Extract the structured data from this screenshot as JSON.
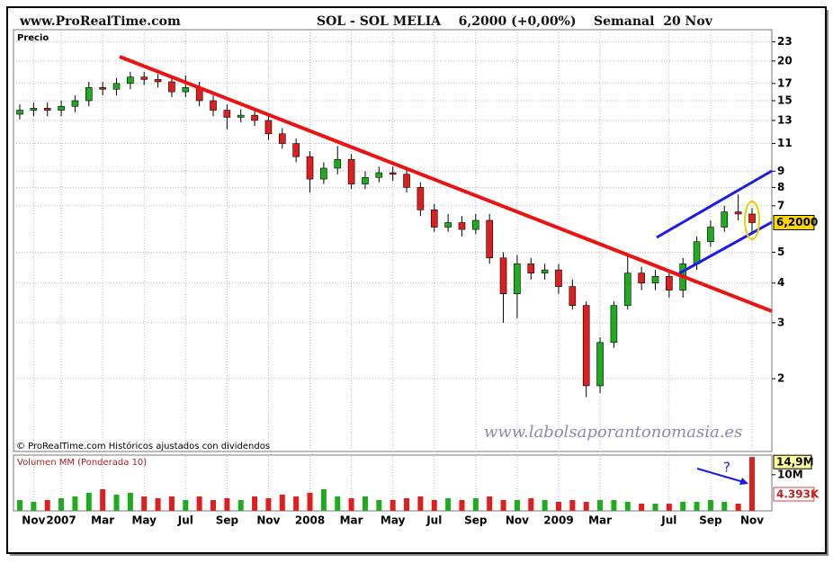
{
  "chart_data": [
    {
      "type": "candlestick",
      "source": "www.ProRealTime.com",
      "title": "SOL - SOL MELIA    6,2000 (+0,00%)    Semanal  20 Nov",
      "ylabel": "Precio",
      "footnote": "© ProRealTime.com  Históricos ajustados con dividendos",
      "watermark": "www.labolsaporantonomasia.es",
      "categories": [
        null,
        "Nov",
        null,
        "2007",
        null,
        null,
        "Mar",
        null,
        null,
        "May",
        null,
        null,
        "Jul",
        null,
        null,
        "Sep",
        null,
        null,
        "Nov",
        null,
        null,
        "2008",
        null,
        null,
        "Mar",
        null,
        null,
        "May",
        null,
        null,
        "Jul",
        null,
        null,
        "Sep",
        null,
        null,
        "Nov",
        null,
        null,
        "2009",
        null,
        null,
        "Mar",
        null,
        null,
        null,
        null,
        "Jul",
        null,
        null,
        "Sep",
        null,
        null,
        "Nov"
      ],
      "open": [
        13.6,
        14.0,
        14.2,
        14.0,
        14.4,
        15.0,
        16.5,
        16.3,
        17.0,
        17.8,
        17.5,
        17.2,
        16.0,
        16.5,
        15.0,
        14.0,
        13.3,
        13.5,
        13.0,
        11.8,
        11.0,
        10.0,
        8.5,
        9.2,
        9.8,
        8.2,
        8.6,
        8.9,
        8.8,
        8.0,
        6.8,
        6.0,
        6.2,
        5.9,
        6.3,
        4.8,
        3.7,
        4.6,
        4.3,
        4.4,
        3.9,
        3.4,
        1.9,
        2.6,
        3.4,
        4.3,
        4.0,
        4.2,
        3.8,
        4.6,
        5.4,
        6.0,
        6.7,
        6.6
      ],
      "high": [
        14.6,
        14.8,
        14.8,
        15.0,
        15.6,
        17.2,
        17.2,
        17.7,
        18.5,
        18.5,
        18.2,
        17.9,
        18.0,
        17.2,
        15.6,
        14.6,
        14.1,
        14.1,
        13.5,
        12.3,
        11.4,
        10.4,
        9.6,
        10.8,
        10.2,
        9.0,
        9.3,
        9.3,
        9.2,
        8.3,
        7.1,
        6.6,
        6.5,
        6.6,
        6.6,
        5.0,
        4.9,
        4.8,
        4.6,
        4.6,
        4.1,
        3.5,
        2.7,
        3.5,
        4.9,
        4.5,
        4.4,
        4.4,
        4.8,
        5.6,
        6.3,
        7.0,
        7.6,
        6.9
      ],
      "low": [
        13.1,
        13.4,
        13.4,
        13.4,
        13.8,
        14.4,
        15.6,
        15.6,
        16.3,
        16.8,
        16.5,
        15.4,
        15.4,
        14.4,
        13.4,
        12.2,
        12.8,
        12.5,
        11.3,
        10.6,
        9.6,
        7.7,
        8.2,
        8.8,
        7.9,
        7.9,
        8.3,
        8.4,
        7.7,
        6.5,
        5.8,
        5.8,
        5.6,
        5.7,
        4.6,
        3.0,
        3.1,
        4.1,
        4.1,
        3.7,
        3.3,
        1.75,
        1.8,
        2.5,
        3.3,
        3.8,
        3.8,
        3.6,
        3.6,
        4.4,
        5.2,
        5.8,
        6.3,
        5.8
      ],
      "close": [
        14.0,
        14.2,
        14.0,
        14.4,
        15.0,
        16.5,
        16.3,
        17.0,
        17.8,
        17.5,
        17.2,
        16.0,
        16.5,
        15.0,
        14.0,
        13.3,
        13.5,
        13.0,
        11.8,
        11.0,
        10.0,
        8.5,
        9.2,
        9.8,
        8.2,
        8.6,
        8.9,
        8.8,
        8.0,
        6.8,
        6.0,
        6.2,
        5.9,
        6.3,
        4.8,
        3.7,
        4.6,
        4.3,
        4.4,
        3.9,
        3.4,
        1.9,
        2.6,
        3.4,
        4.3,
        4.0,
        4.2,
        3.8,
        4.6,
        5.4,
        6.0,
        6.7,
        6.6,
        6.2
      ],
      "last_price": {
        "value": 6.2,
        "label": "6,2000"
      },
      "ylim": [
        1.18,
        25.1
      ],
      "yticks": [
        2,
        3,
        4,
        5,
        7,
        8,
        9,
        11,
        13,
        15,
        17,
        20,
        23
      ],
      "log_scale": true,
      "grid": true,
      "up_color": "#1faa1f",
      "down_color": "#dd1f1f"
    },
    {
      "type": "bar",
      "title": "Volumen MM (Ponderada 10)",
      "values": [
        3,
        2.5,
        3,
        3.5,
        4,
        5,
        6,
        4.5,
        5,
        4,
        3.5,
        4,
        3,
        4,
        3,
        3.5,
        3,
        4,
        3.5,
        4.5,
        4,
        5,
        6,
        4,
        3.5,
        4,
        3,
        3,
        3.5,
        4,
        3,
        3.5,
        3,
        3.5,
        4,
        3,
        3,
        3.5,
        3,
        2.5,
        3,
        2.5,
        3,
        3,
        2.5,
        2,
        2,
        2,
        2.5,
        2.5,
        3,
        2.5,
        2,
        14.9
      ],
      "value_labels": [
        null,
        null,
        null,
        null,
        null,
        null,
        null,
        null,
        null,
        null,
        null,
        null,
        null,
        null,
        null,
        null,
        null,
        null,
        null,
        null,
        null,
        null,
        null,
        null,
        null,
        null,
        null,
        null,
        null,
        null,
        null,
        null,
        null,
        null,
        null,
        null,
        null,
        null,
        null,
        null,
        null,
        null,
        null,
        null,
        null,
        null,
        null,
        null,
        null,
        null,
        null,
        null,
        null,
        "14,9M"
      ],
      "ma_label": "4.393K",
      "annotation": "?",
      "ylim": [
        0,
        15.2
      ],
      "yticks": [
        {
          "value": 10,
          "label": "10M"
        }
      ]
    }
  ]
}
